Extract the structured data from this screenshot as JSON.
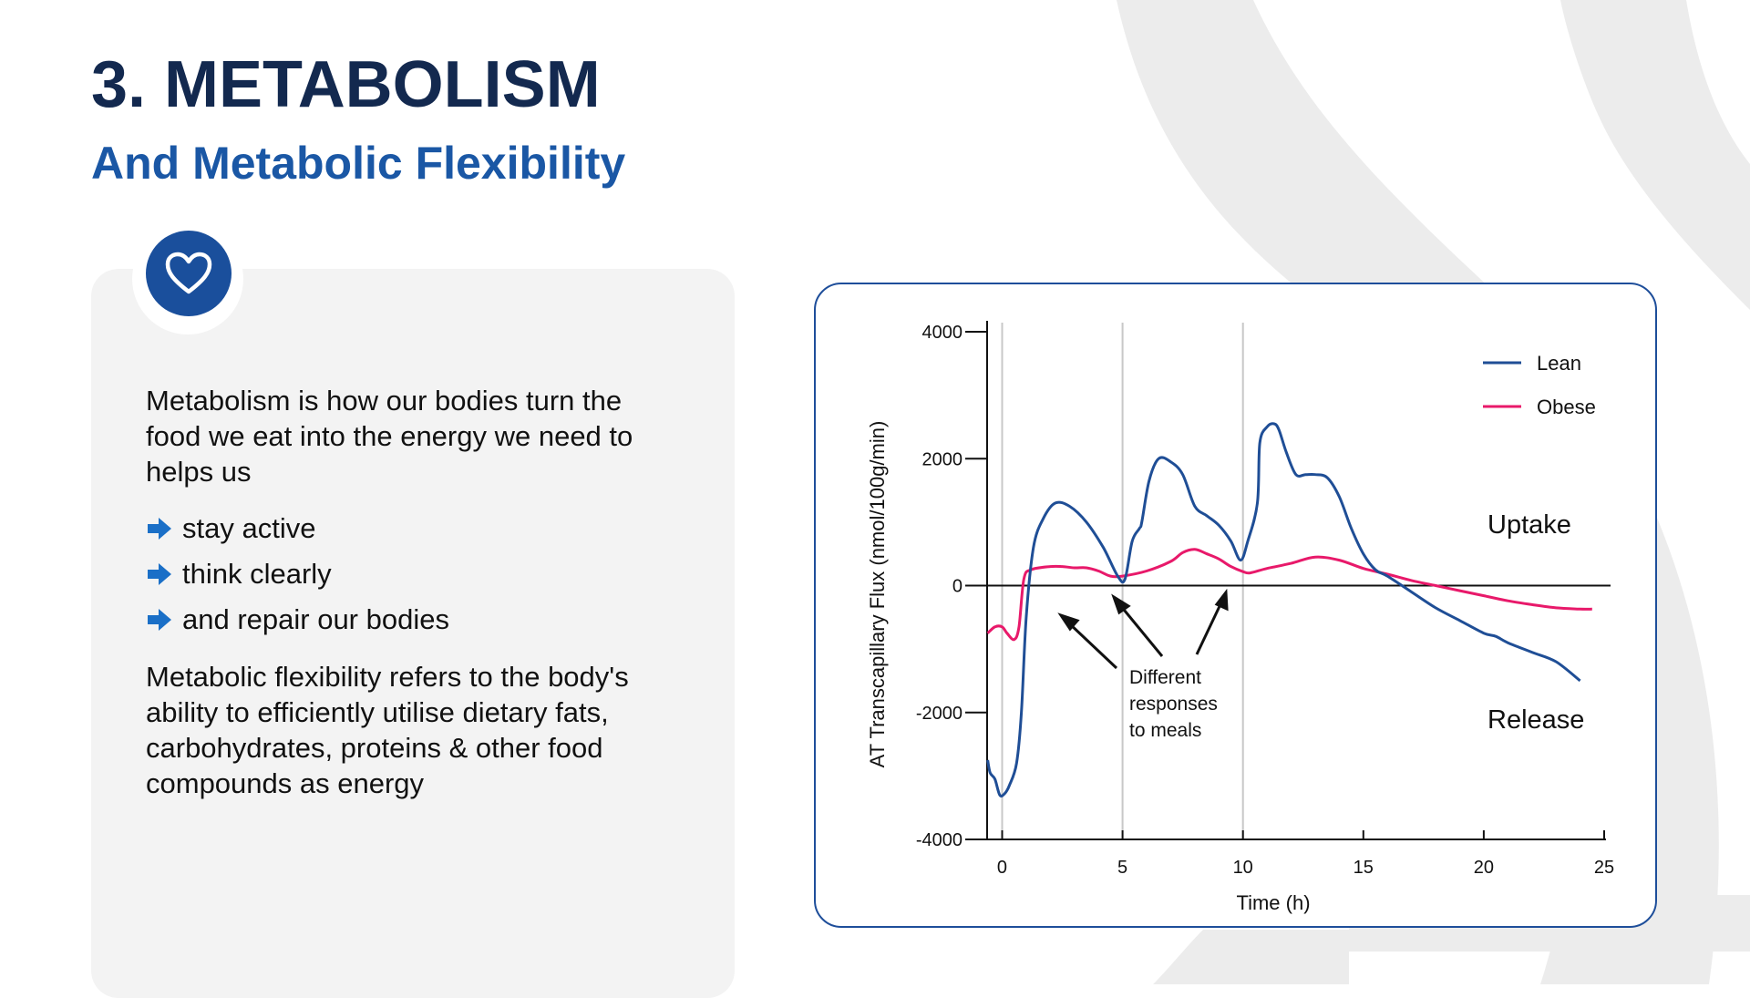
{
  "slide": {
    "title": "3. METABOLISM",
    "subtitle": "And Metabolic Flexibility"
  },
  "card": {
    "icon": "heart-icon",
    "intro_lines": [
      "Metabolism is how our bodies turn the",
      "food we eat into the energy we need to",
      "helps us"
    ],
    "bullets": [
      "stay active",
      "think clearly",
      "and repair our bodies"
    ],
    "flex_lines": [
      "Metabolic flexibility refers to the body's",
      "ability to efficiently utilise dietary fats,",
      "carbohydrates, proteins & other food",
      "compounds as energy"
    ]
  },
  "colors": {
    "title": "#13294f",
    "subtitle": "#1a57a5",
    "accent": "#1a4f9c",
    "bullet_arrow": "#1a6fc7",
    "lean": "#1f4e96",
    "obese": "#e8196a"
  },
  "chart_data": {
    "type": "line",
    "xlabel": "Time (h)",
    "ylabel": "AT Transcapillary Flux (nmol/100g/min)",
    "xlim": [
      -0.7,
      25
    ],
    "ylim": [
      -4000,
      4000
    ],
    "xticks": [
      0,
      5,
      10,
      15,
      20,
      25
    ],
    "yticks": [
      -4000,
      -2000,
      0,
      2000,
      4000
    ],
    "vertical_reference_lines": [
      0,
      5,
      10
    ],
    "grid": false,
    "legend_position": "top-right",
    "series": [
      {
        "name": "Lean",
        "color": "#1f4e96",
        "x": [
          -0.6,
          -0.5,
          -0.3,
          -0.1,
          0.1,
          0.3,
          0.6,
          0.8,
          1.0,
          1.3,
          1.7,
          2.2,
          2.8,
          3.5,
          4.2,
          4.8,
          5.1,
          5.4,
          5.7,
          5.8,
          6.1,
          6.5,
          7.0,
          7.5,
          8.0,
          8.5,
          9.0,
          9.5,
          9.9,
          10.2,
          10.6,
          10.7,
          11.0,
          11.3,
          11.5,
          11.8,
          12.2,
          12.6,
          13.0,
          13.5,
          14.0,
          14.5,
          15.0,
          15.5,
          16.0,
          17.0,
          18.0,
          19.0,
          20.0,
          20.5,
          21.0,
          22.0,
          23.0,
          24.0
        ],
        "y": [
          -2750,
          -2950,
          -3050,
          -3300,
          -3280,
          -3150,
          -2800,
          -2000,
          -500,
          600,
          1050,
          1300,
          1250,
          1000,
          600,
          150,
          100,
          700,
          900,
          1000,
          1650,
          2000,
          1950,
          1750,
          1250,
          1100,
          950,
          700,
          400,
          700,
          1300,
          2250,
          2500,
          2550,
          2450,
          2100,
          1750,
          1750,
          1750,
          1700,
          1400,
          900,
          500,
          250,
          150,
          -100,
          -350,
          -550,
          -750,
          -800,
          -900,
          -1050,
          -1200,
          -1500
        ]
      },
      {
        "name": "Obese",
        "color": "#e8196a",
        "x": [
          -0.6,
          -0.3,
          0.0,
          0.2,
          0.5,
          0.7,
          0.9,
          1.2,
          2.0,
          2.5,
          3.0,
          3.5,
          4.0,
          4.5,
          5.0,
          6.0,
          7.0,
          7.5,
          8.0,
          8.5,
          9.0,
          9.5,
          10.0,
          10.3,
          11.0,
          12.0,
          13.0,
          14.0,
          15.0,
          16.0,
          17.0,
          18.0,
          19.0,
          20.0,
          21.0,
          22.0,
          23.0,
          24.0,
          24.5
        ],
        "y": [
          -750,
          -650,
          -650,
          -750,
          -850,
          -650,
          100,
          250,
          300,
          300,
          280,
          280,
          230,
          150,
          150,
          230,
          380,
          520,
          570,
          500,
          420,
          300,
          220,
          200,
          270,
          350,
          450,
          400,
          270,
          180,
          80,
          0,
          -80,
          -160,
          -240,
          -300,
          -350,
          -370,
          -370
        ]
      }
    ],
    "annotations": {
      "uptake": "Uptake",
      "release": "Release",
      "meals_note": [
        "Different",
        "responses",
        "to meals"
      ]
    }
  }
}
